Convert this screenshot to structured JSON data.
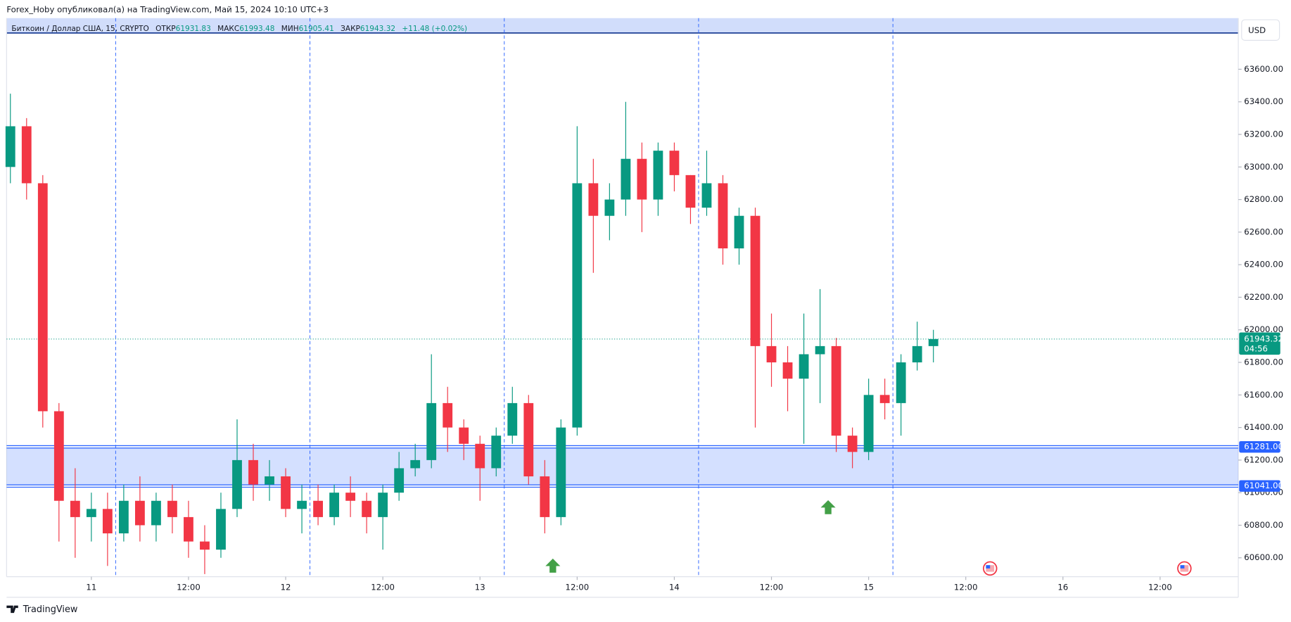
{
  "header": {
    "title": "Forex_Hoby опубликовал(а) на TradingView.com, Май 15, 2024 10:10 UTC+3"
  },
  "chart_data": {
    "type": "candlestick",
    "legend": {
      "symbol": "Биткоин / Доллар США, 15, CRYPTO",
      "open_label": "ОТКР",
      "open": 61931.83,
      "high_label": "МАКС",
      "high": 61993.48,
      "low_label": "МИН",
      "low": 61905.41,
      "close_label": "ЗАКР",
      "close": 61943.32,
      "change": "+11.48 (+0.02%)"
    },
    "currency": "USD",
    "up_color": "#089981",
    "down_color": "#f23645",
    "x": [
      -10,
      -8,
      -6,
      -4,
      -2,
      0,
      2,
      4,
      6,
      8,
      10,
      12,
      14,
      16,
      18,
      20,
      22,
      24,
      26,
      28,
      30,
      32,
      34,
      36,
      38,
      40,
      42,
      44,
      46,
      48,
      50,
      52,
      54,
      56,
      58,
      60,
      62,
      64,
      66,
      68,
      70,
      72,
      74,
      76,
      78,
      80,
      82,
      84,
      86,
      88,
      90,
      92,
      94,
      96,
      98,
      100,
      102,
      104
    ],
    "open": [
      63000,
      63250,
      62900,
      61500,
      60950,
      60850,
      60900,
      60750,
      60950,
      60800,
      60950,
      60850,
      60700,
      60650,
      60900,
      61200,
      61050,
      61100,
      60900,
      60950,
      60850,
      61000,
      60950,
      60850,
      61000,
      61150,
      61200,
      61550,
      61400,
      61300,
      61150,
      61350,
      61550,
      61100,
      60850,
      61400,
      62900,
      62700,
      62800,
      63050,
      62800,
      63100,
      62950,
      62750,
      62900,
      62500,
      62700,
      61900,
      61800,
      61700,
      61850,
      61900,
      61350,
      61250,
      61600,
      61550,
      61800,
      61900
    ],
    "high": [
      63450,
      63300,
      62950,
      61550,
      61150,
      61000,
      61000,
      61050,
      61100,
      61000,
      61050,
      60950,
      60800,
      61000,
      61450,
      61300,
      61200,
      61150,
      61050,
      61050,
      61050,
      61100,
      61000,
      61050,
      61250,
      61300,
      61850,
      61650,
      61450,
      61350,
      61400,
      61650,
      61600,
      61200,
      61450,
      63250,
      63050,
      62900,
      63400,
      63150,
      63150,
      63150,
      62950,
      63100,
      62950,
      62750,
      62750,
      62100,
      61900,
      62100,
      62250,
      61950,
      61400,
      61700,
      61700,
      61850,
      62050,
      62000
    ],
    "low": [
      62900,
      62800,
      61400,
      60700,
      60600,
      60700,
      60550,
      60700,
      60700,
      60700,
      60750,
      60600,
      60500,
      60600,
      60850,
      60950,
      60950,
      60850,
      60750,
      60800,
      60800,
      60850,
      60750,
      60650,
      60950,
      61100,
      61150,
      61250,
      61200,
      60950,
      61100,
      61300,
      61050,
      60750,
      60800,
      61350,
      62350,
      62550,
      62700,
      62600,
      62700,
      62850,
      62650,
      62700,
      62400,
      62400,
      61400,
      61650,
      61500,
      61300,
      61550,
      61250,
      61150,
      61200,
      61450,
      61350,
      61750,
      61800
    ],
    "close": [
      63250,
      62900,
      61500,
      60950,
      60850,
      60900,
      60750,
      60950,
      60800,
      60950,
      60850,
      60700,
      60650,
      60900,
      61200,
      61050,
      61100,
      60900,
      60950,
      60850,
      61000,
      60950,
      60850,
      61000,
      61150,
      61200,
      61550,
      61400,
      61300,
      61150,
      61350,
      61550,
      61100,
      60850,
      61400,
      62900,
      62700,
      62800,
      63050,
      62800,
      63100,
      62950,
      62750,
      62900,
      62500,
      62700,
      61900,
      61800,
      61700,
      61850,
      61900,
      61350,
      61250,
      61600,
      61550,
      61800,
      61900,
      61943.32
    ],
    "xlim": [
      -10.47,
      141.66
    ],
    "xticks": [
      {
        "value": 0,
        "label": "11"
      },
      {
        "value": 12,
        "label": "12:00"
      },
      {
        "value": 24,
        "label": "12"
      },
      {
        "value": 36,
        "label": "12:00"
      },
      {
        "value": 48,
        "label": "13"
      },
      {
        "value": 60,
        "label": "12:00"
      },
      {
        "value": 72,
        "label": "14"
      },
      {
        "value": 84,
        "label": "12:00"
      },
      {
        "value": 96,
        "label": "15"
      },
      {
        "value": 108,
        "label": "12:00"
      },
      {
        "value": 120,
        "label": "16"
      },
      {
        "value": 132,
        "label": "12:00"
      }
    ],
    "ylim": [
      60484,
      63914
    ],
    "yticks": [
      {
        "value": 60600,
        "label": "60600.00"
      },
      {
        "value": 60800,
        "label": "60800.00"
      },
      {
        "value": 61000,
        "label": "61000.00"
      },
      {
        "value": 61200,
        "label": "61200.00"
      },
      {
        "value": 61400,
        "label": "61400.00"
      },
      {
        "value": 61600,
        "label": "61600.00"
      },
      {
        "value": 61800,
        "label": "61800.00"
      },
      {
        "value": 62000,
        "label": "62000.00"
      },
      {
        "value": 62200,
        "label": "62200.00"
      },
      {
        "value": 62400,
        "label": "62400.00"
      },
      {
        "value": 62600,
        "label": "62600.00"
      },
      {
        "value": 62800,
        "label": "62800.00"
      },
      {
        "value": 63000,
        "label": "63000.00"
      },
      {
        "value": 63200,
        "label": "63200.00"
      },
      {
        "value": 63400,
        "label": "63400.00"
      },
      {
        "value": 63600,
        "label": "63600.00"
      }
    ],
    "zone": {
      "top": {
        "value": 61281,
        "label": "61281.00"
      },
      "bottom": {
        "value": 61041,
        "label": "61041.00"
      }
    },
    "last_price": 61943.32,
    "countdown": "04:56",
    "session_breaks": [
      3,
      27,
      51,
      75,
      99
    ],
    "markers": [
      {
        "x": 57,
        "y": 60595
      },
      {
        "x": 91,
        "y": 60954
      }
    ],
    "events": [
      111,
      135
    ]
  },
  "footer": {
    "brand": "TradingView"
  }
}
